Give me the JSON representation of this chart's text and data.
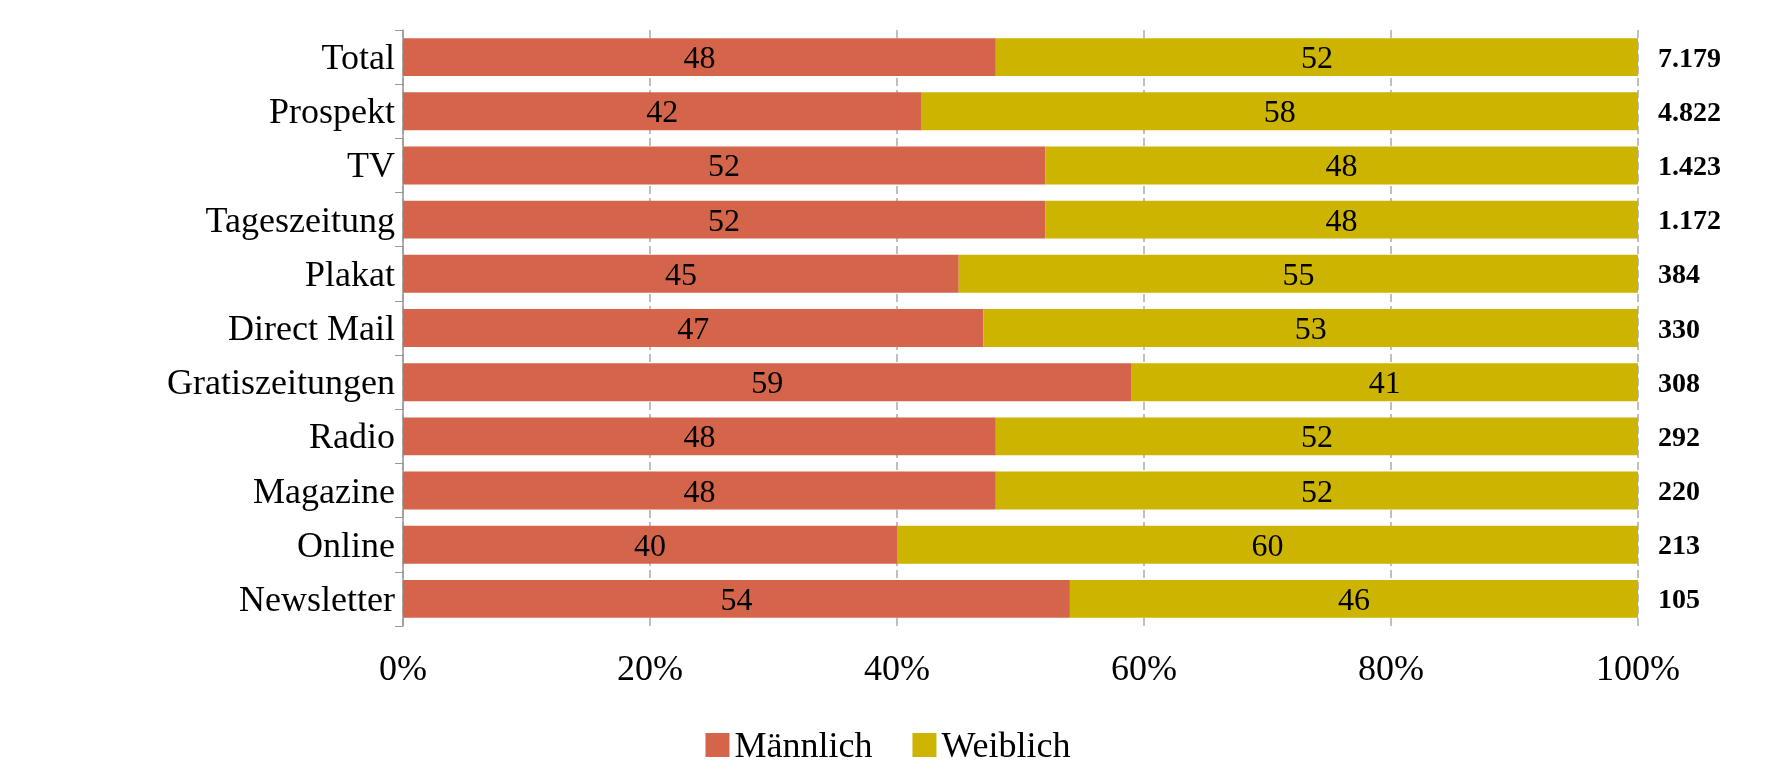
{
  "chart_data": {
    "type": "bar",
    "orientation": "horizontal",
    "stacked": true,
    "categories": [
      "Total",
      "Prospekt",
      "TV",
      "Tageszeitung",
      "Plakat",
      "Direct Mail",
      "Gratiszeitungen",
      "Radio",
      "Magazine",
      "Online",
      "Newsletter"
    ],
    "series": [
      {
        "name": "Männlich",
        "color": "#d4654a",
        "values": [
          48,
          42,
          52,
          52,
          45,
          47,
          59,
          48,
          48,
          40,
          54
        ]
      },
      {
        "name": "Weiblich",
        "color": "#ccb400",
        "values": [
          52,
          58,
          48,
          48,
          55,
          53,
          41,
          52,
          52,
          60,
          46
        ]
      }
    ],
    "xlim": [
      0,
      100
    ],
    "xticks": [
      {
        "value": 0,
        "label": "0%"
      },
      {
        "value": 20,
        "label": "20%"
      },
      {
        "value": 40,
        "label": "40%"
      },
      {
        "value": 60,
        "label": "60%"
      },
      {
        "value": 80,
        "label": "80%"
      },
      {
        "value": 100,
        "label": "100%"
      }
    ],
    "annotations": [
      "7.179",
      "4.822",
      "1.423",
      "1.172",
      "384",
      "330",
      "308",
      "292",
      "220",
      "213",
      "105"
    ],
    "data_labels": true,
    "grid": "x",
    "legend": "bottom"
  }
}
